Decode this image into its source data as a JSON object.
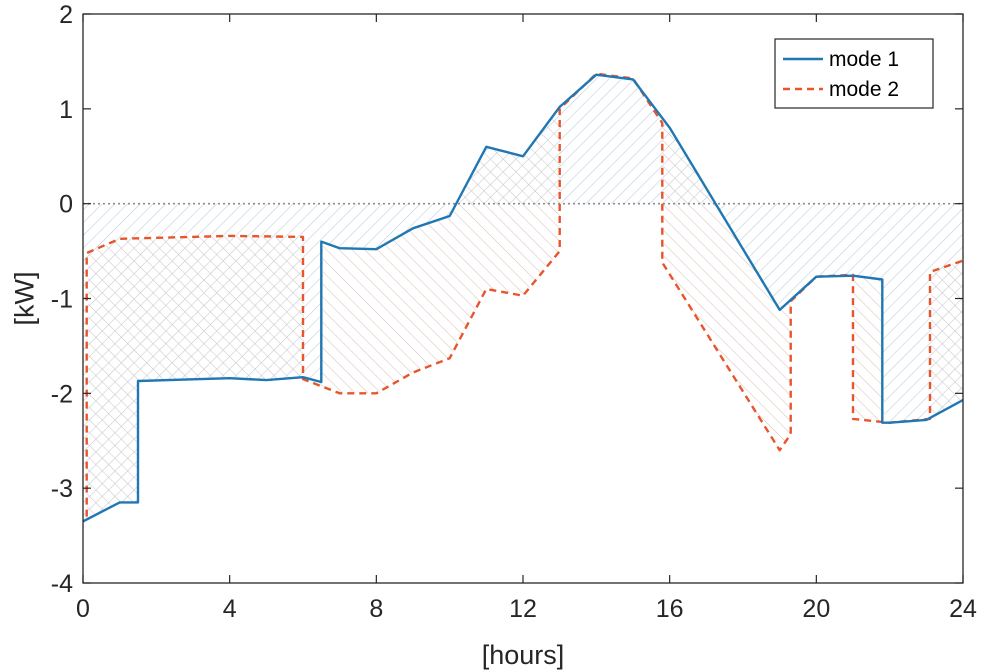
{
  "chart_data": {
    "type": "line",
    "xlabel": "[hours]",
    "ylabel": "[kW]",
    "xlim": [
      0,
      24
    ],
    "ylim": [
      -4,
      2
    ],
    "xticks": [
      0,
      4,
      8,
      12,
      16,
      20,
      24
    ],
    "yticks": [
      2,
      1,
      0,
      -1,
      -2,
      -3,
      -4
    ],
    "grid": false,
    "legend_position": "top-right",
    "zero_line": {
      "y": 0,
      "style": "dotted",
      "color": "#8c8c8c"
    },
    "shading": [
      {
        "between": "mode 1 and mode 2",
        "style": "hatched"
      },
      {
        "between": "mode 1 and zero line",
        "style": "hatched"
      }
    ],
    "series": [
      {
        "name": "mode 1",
        "style": "solid",
        "color": "#1f77b4",
        "x": [
          0,
          1,
          1.5,
          1.5,
          4,
          5,
          6,
          6.5,
          6.5,
          7,
          8,
          9,
          10,
          11,
          12,
          13,
          14,
          15,
          16,
          19,
          20,
          21,
          21.8,
          21.8,
          22,
          23,
          24
        ],
        "y": [
          -3.35,
          -3.15,
          -3.15,
          -1.87,
          -1.84,
          -1.86,
          -1.83,
          -1.88,
          -0.4,
          -0.47,
          -0.48,
          -0.26,
          -0.13,
          0.6,
          0.5,
          1.02,
          1.36,
          1.31,
          0.8,
          -1.12,
          -0.77,
          -0.76,
          -0.8,
          -2.31,
          -2.31,
          -2.28,
          -2.07
        ]
      },
      {
        "name": "mode 2",
        "style": "dashed",
        "color": "#e8542c",
        "x": [
          0.1,
          0.1,
          1,
          4,
          6,
          6,
          7,
          8,
          9,
          10,
          11,
          12,
          13,
          13,
          14,
          15,
          15.8,
          15.8,
          19,
          19.3,
          19.3,
          20,
          21,
          21,
          22,
          23.1,
          23.1,
          24
        ],
        "y": [
          -3.3,
          -0.52,
          -0.37,
          -0.34,
          -0.35,
          -1.85,
          -2.0,
          -2.0,
          -1.78,
          -1.63,
          -0.9,
          -0.97,
          -0.5,
          1.0,
          1.37,
          1.32,
          0.85,
          -0.62,
          -2.6,
          -2.43,
          -1.03,
          -0.77,
          -0.75,
          -2.27,
          -2.31,
          -2.27,
          -0.72,
          -0.6
        ]
      }
    ]
  }
}
